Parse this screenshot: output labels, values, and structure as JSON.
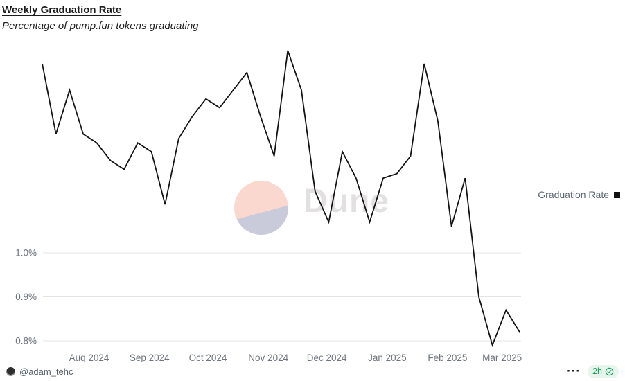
{
  "header": {
    "title": "Weekly Graduation Rate",
    "subtitle": "Percentage of pump.fun tokens graduating"
  },
  "legend": {
    "label": "Graduation Rate",
    "marker_color": "#111111"
  },
  "watermark": {
    "logo_name": "dune-logo",
    "text": "Dune",
    "circle_top_color": "#fad8d0",
    "circle_bottom_color": "#c9cada",
    "text_color": "#e2e0e0"
  },
  "footer": {
    "author_handle": "@adam_tehc",
    "more_icon": "···",
    "badge_text": "2h",
    "badge_text_color": "#18a15c",
    "badge_bg_color": "#e7f5ed"
  },
  "chart_data": {
    "type": "line",
    "title": "Weekly Graduation Rate",
    "subtitle": "Percentage of pump.fun tokens graduating",
    "unit": "%",
    "grid": "horizontal-only",
    "legend_position": "right",
    "line_color": "#131313",
    "gridline_color": "#e4e4e4",
    "tick_label_color": "#6e757c",
    "x": [
      "Jul 8, 2024",
      "Jul 15, 2024",
      "Jul 22, 2024",
      "Jul 29, 2024",
      "Aug 5, 2024",
      "Aug 12, 2024",
      "Aug 19, 2024",
      "Aug 26, 2024",
      "Sep 2, 2024",
      "Sep 9, 2024",
      "Sep 16, 2024",
      "Sep 23, 2024",
      "Sep 30, 2024",
      "Oct 7, 2024",
      "Oct 14, 2024",
      "Oct 21, 2024",
      "Oct 28, 2024",
      "Nov 4, 2024",
      "Nov 11, 2024",
      "Nov 18, 2024",
      "Nov 25, 2024",
      "Dec 2, 2024",
      "Dec 9, 2024",
      "Dec 16, 2024",
      "Dec 23, 2024",
      "Dec 30, 2024",
      "Jan 6, 2025",
      "Jan 13, 2025",
      "Jan 20, 2025",
      "Jan 27, 2025",
      "Feb 3, 2025",
      "Feb 10, 2025",
      "Feb 17, 2025",
      "Feb 24, 2025",
      "Mar 3, 2025",
      "Mar 10, 2025"
    ],
    "series": [
      {
        "name": "Graduation Rate",
        "values": [
          1.43,
          1.27,
          1.37,
          1.27,
          1.25,
          1.21,
          1.19,
          1.25,
          1.23,
          1.11,
          1.26,
          1.31,
          1.35,
          1.33,
          1.37,
          1.41,
          1.31,
          1.22,
          1.46,
          1.37,
          1.14,
          1.07,
          1.23,
          1.17,
          1.07,
          1.17,
          1.18,
          1.22,
          1.43,
          1.3,
          1.06,
          1.17,
          0.9,
          0.79,
          0.87,
          0.82
        ]
      }
    ],
    "x_ticks": [
      {
        "label": "Aug 2024",
        "week_index": 3.43
      },
      {
        "label": "Sep 2024",
        "week_index": 7.86
      },
      {
        "label": "Oct 2024",
        "week_index": 12.14
      },
      {
        "label": "Nov 2024",
        "week_index": 16.57
      },
      {
        "label": "Dec 2024",
        "week_index": 20.86
      },
      {
        "label": "Jan 2025",
        "week_index": 25.29
      },
      {
        "label": "Feb 2025",
        "week_index": 29.71
      },
      {
        "label": "Mar 2025",
        "week_index": 33.71
      }
    ],
    "y_ticks": [
      {
        "label": "1.0%",
        "value": 1.0
      },
      {
        "label": "0.9%",
        "value": 0.9
      },
      {
        "label": "0.8%",
        "value": 0.8
      }
    ]
  }
}
